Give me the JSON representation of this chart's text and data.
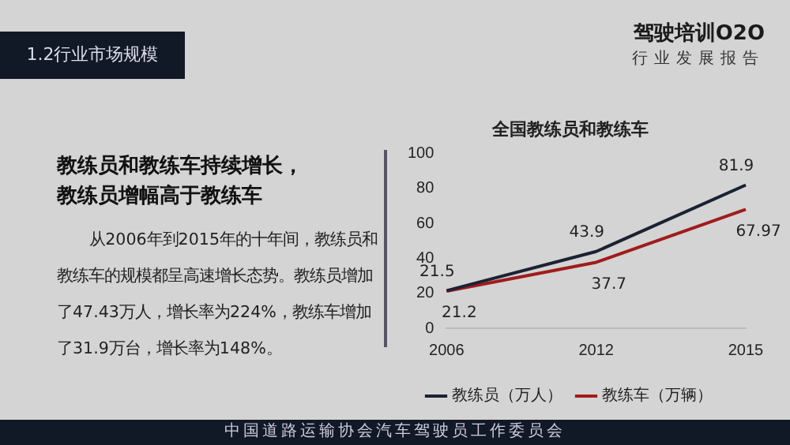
{
  "chart_data": {
    "type": "line",
    "title": "全国教练员和教练车",
    "categories": [
      "2006",
      "2012",
      "2015"
    ],
    "series": [
      {
        "name": "教练员（万人）",
        "color": "#1c2233",
        "values": [
          21.5,
          43.9,
          81.9
        ]
      },
      {
        "name": "教练车（万辆）",
        "color": "#a01c1c",
        "values": [
          21.2,
          37.7,
          67.97
        ]
      }
    ],
    "ylim": [
      0,
      100
    ],
    "yticks": [
      0,
      20,
      40,
      60,
      80,
      100
    ],
    "grid": false,
    "legend": "bottom",
    "data_labels": true,
    "marker": "none",
    "line_style": "solid",
    "annotations": [
      "1.2行业市场规模",
      "驾驶培训O2O",
      "行业发展报告",
      "教练员和教练车持续增长，",
      "教练员增幅高于教练车",
      "从2006年到2015年的十年间，教练员和教练车的规模都呈高速增长态势。教练员增加了47.43万人，增长率为224%，教练车增加了31.9万台，增长率为148%。",
      "中国道路运输协会汽车驾驶员工作委员会"
    ]
  }
}
